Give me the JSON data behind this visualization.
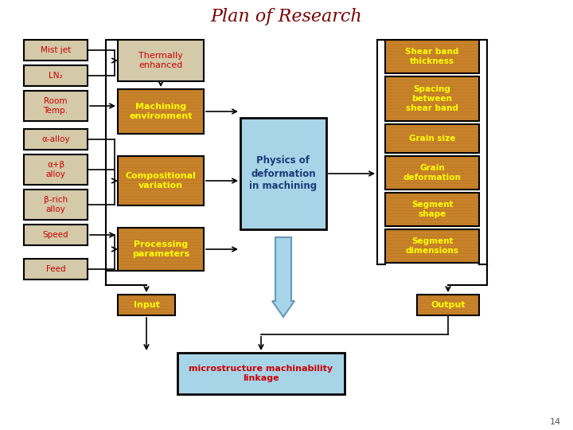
{
  "title": "Plan of Research",
  "title_color": "#7B0000",
  "title_fontsize": 16,
  "bg_color": "#ffffff",
  "wood_color": "#C8822A",
  "sand_color": "#D4C9A8",
  "blue_water": "#A8D4E8",
  "left_labels": [
    "Mist jet",
    "LN₂",
    "Room\nTemp.",
    "α-alloy",
    "α+β\nalloy",
    "β-rich\nalloy",
    "Speed",
    "Feed"
  ],
  "center_label": "Physics of\ndeformation\nin machining",
  "right_labels": [
    "Shear band\nthickness",
    "Spacing\nbetween\nshear band",
    "Grain size",
    "Grain\ndeformation",
    "Segment\nshape",
    "Segment\ndimensions"
  ],
  "bottom_left_label": "Input",
  "bottom_right_label": "Output",
  "bottom_center_label": "microstructure machinability\nlinkage",
  "page_num": "14",
  "text_red": "#CC0000",
  "text_yellow": "#FFFF00"
}
